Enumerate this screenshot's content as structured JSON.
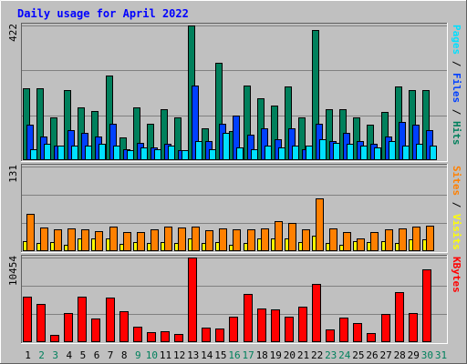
{
  "colors": {
    "background": "#c0c0c0",
    "panel": "#c0c0c0",
    "grid": "#808080",
    "title": "#0000ff",
    "hits": "#00805c",
    "files": "#0040ff",
    "pages": "#00e0ff",
    "visits": "#ffff00",
    "sites": "#ff8000",
    "kbytes": "#ff0000",
    "weekday_label": "#000000",
    "weekend_label": "#00805c"
  },
  "chart_data": {
    "type": "bar",
    "title": "Daily usage for April 2022",
    "x_tick_labels": [
      "1",
      "2",
      "3",
      "4",
      "5",
      "6",
      "7",
      "8",
      "9",
      "10",
      "11",
      "12",
      "13",
      "14",
      "15",
      "16",
      "17",
      "18",
      "19",
      "20",
      "21",
      "22",
      "23",
      "24",
      "25",
      "26",
      "27",
      "28",
      "29",
      "30",
      "31"
    ],
    "weekend_days": [
      "2",
      "3",
      "9",
      "10",
      "16",
      "17",
      "23",
      "24",
      "30",
      "31"
    ],
    "panels": [
      {
        "ymax_label": "422",
        "ymax": 422,
        "right_label": [
          {
            "text": "Pages",
            "color_key": "pages"
          },
          {
            "text": " / ",
            "color_key": "weekday_label"
          },
          {
            "text": "Files",
            "color_key": "files"
          },
          {
            "text": " / ",
            "color_key": "weekday_label"
          },
          {
            "text": "Hits",
            "color_key": "hits"
          }
        ],
        "series": [
          {
            "name": "Hits",
            "color_key": "hits",
            "values": [
              225,
              225,
              135,
              220,
              165,
              155,
              265,
              70,
              165,
              115,
              160,
              135,
              422,
              100,
              305,
              90,
              235,
              195,
              170,
              230,
              135,
              407,
              160,
              160,
              135,
              110,
              150,
              230,
              220,
              220,
              null
            ]
          },
          {
            "name": "Files",
            "color_key": "files",
            "values": [
              110,
              75,
              45,
              95,
              85,
              75,
              115,
              35,
              55,
              40,
              50,
              30,
              235,
              60,
              115,
              140,
              80,
              100,
              65,
              100,
              35,
              115,
              60,
              85,
              60,
              50,
              75,
              120,
              110,
              95,
              null
            ]
          },
          {
            "name": "Pages",
            "color_key": "pages",
            "values": [
              35,
              50,
              45,
              45,
              45,
              50,
              45,
              30,
              40,
              35,
              45,
              30,
              60,
              35,
              85,
              40,
              35,
              45,
              40,
              45,
              45,
              65,
              55,
              50,
              45,
              40,
              60,
              45,
              50,
              45,
              null
            ]
          }
        ]
      },
      {
        "ymax_label": "131",
        "ymax": 131,
        "right_label": [
          {
            "text": "Sites",
            "color_key": "sites"
          },
          {
            "text": " / ",
            "color_key": "weekday_label"
          },
          {
            "text": "Visits",
            "color_key": "visits"
          }
        ],
        "series": [
          {
            "name": "Visits",
            "color_key": "visits",
            "values": [
              16,
              12,
              14,
              10,
              20,
              20,
              20,
              11,
              14,
              12,
              14,
              12,
              20,
              12,
              14,
              10,
              12,
              20,
              20,
              20,
              14,
              24,
              12,
              10,
              16,
              14,
              16,
              12,
              18,
              18,
              null
            ]
          },
          {
            "name": "Sites",
            "color_key": "sites",
            "values": [
              58,
              37,
              34,
              35,
              34,
              31,
              38,
              29,
              30,
              34,
              38,
              37,
              38,
              33,
              35,
              34,
              34,
              35,
              47,
              44,
              34,
              82,
              35,
              30,
              20,
              30,
              34,
              35,
              38,
              40,
              null
            ]
          }
        ]
      },
      {
        "ymax_label": "10454",
        "ymax": 10454,
        "right_label": [
          {
            "text": "KBytes",
            "color_key": "kbytes"
          }
        ],
        "series": [
          {
            "name": "KBytes",
            "color_key": "kbytes",
            "values": [
              5600,
              4700,
              900,
              3600,
              5600,
              2900,
              5500,
              3800,
              1900,
              1200,
              1300,
              1000,
              10454,
              1800,
              1700,
              3100,
              6000,
              4200,
              4100,
              3200,
              4400,
              7200,
              1600,
              3000,
              2400,
              1100,
              3500,
              6200,
              3600,
              9000,
              null
            ]
          }
        ]
      }
    ],
    "grid": true
  }
}
